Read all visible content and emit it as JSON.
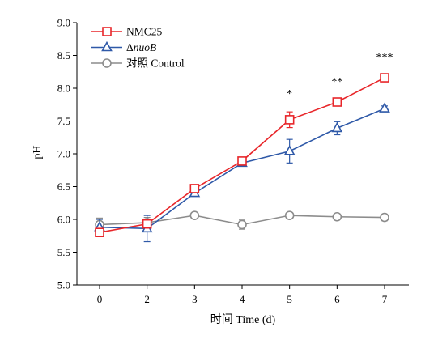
{
  "chart_data": {
    "type": "line",
    "title": "",
    "xlabel": "时间 Time (d)",
    "ylabel": "pH",
    "x_ticks": [
      "0",
      "2",
      "3",
      "4",
      "5",
      "6",
      "7"
    ],
    "y_ticks": [
      "5.0",
      "5.5",
      "6.0",
      "6.5",
      "7.0",
      "7.5",
      "8.0",
      "8.5",
      "9.0"
    ],
    "ylim": [
      5.0,
      9.0
    ],
    "grid": false,
    "legend_position": "top-left",
    "series": [
      {
        "name": "NMC25",
        "legend_parts": [
          {
            "text": "NMC25",
            "italic": false
          }
        ],
        "color": "#e8262a",
        "marker": "square",
        "values": [
          5.8,
          5.93,
          6.47,
          6.89,
          7.52,
          7.79,
          8.16
        ],
        "errors": [
          0.03,
          0.03,
          0.03,
          0.04,
          0.12,
          0.04,
          0.04
        ]
      },
      {
        "name": "ΔnuoB",
        "legend_parts": [
          {
            "text": "Δ",
            "italic": false
          },
          {
            "text": "nuoB",
            "italic": true
          }
        ],
        "color": "#2f59a8",
        "marker": "triangle",
        "values": [
          5.88,
          5.86,
          6.4,
          6.86,
          7.04,
          7.39,
          7.69
        ],
        "errors": [
          0.12,
          0.2,
          0.04,
          0.04,
          0.18,
          0.1,
          0.04
        ]
      },
      {
        "name": "对照 Control",
        "legend_parts": [
          {
            "text": "对照 Control",
            "italic": false
          }
        ],
        "color": "#8c8c8c",
        "marker": "circle",
        "values": [
          5.92,
          5.95,
          6.06,
          5.92,
          6.06,
          6.04,
          6.03
        ],
        "errors": [
          0.1,
          0.08,
          0.03,
          0.07,
          0.03,
          0.03,
          0.05
        ]
      }
    ],
    "annotations": [
      {
        "text": "*",
        "x_index": 4
      },
      {
        "text": "**",
        "x_index": 5
      },
      {
        "text": "***",
        "x_index": 6
      }
    ]
  }
}
